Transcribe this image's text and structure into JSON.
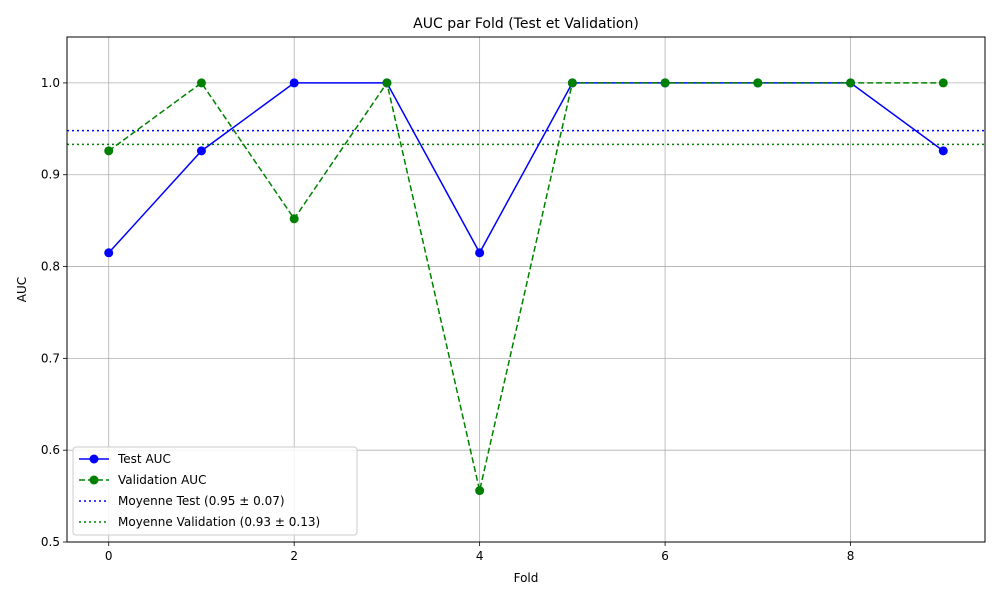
{
  "chart_data": {
    "type": "line",
    "title": "AUC par Fold (Test et Validation)",
    "xlabel": "Fold",
    "ylabel": "AUC",
    "xlim": [
      -0.45,
      9.45
    ],
    "ylim": [
      0.5,
      1.05
    ],
    "xticks": [
      0,
      2,
      4,
      6,
      8
    ],
    "yticks": [
      0.5,
      0.6,
      0.7,
      0.8,
      0.9,
      1.0
    ],
    "ytick_labels": [
      "0.5",
      "0.6",
      "0.7",
      "0.8",
      "0.9",
      "1.0"
    ],
    "grid": true,
    "legend_position": "lower-left",
    "x": [
      0,
      1,
      2,
      3,
      4,
      5,
      6,
      7,
      8,
      9
    ],
    "series": [
      {
        "name": "Test AUC",
        "color": "#0000ff",
        "style": "solid",
        "marker": "circle",
        "values": [
          0.815,
          0.926,
          1.0,
          1.0,
          0.815,
          1.0,
          1.0,
          1.0,
          1.0,
          0.926
        ]
      },
      {
        "name": "Validation AUC",
        "color": "#008000",
        "style": "dashed",
        "marker": "circle",
        "values": [
          0.926,
          1.0,
          0.852,
          1.0,
          0.556,
          1.0,
          1.0,
          1.0,
          1.0,
          1.0
        ]
      }
    ],
    "reference_lines": [
      {
        "name": "Moyenne Test (0.95 ± 0.07)",
        "color": "#0000ff",
        "style": "dotted",
        "value": 0.948
      },
      {
        "name": "Moyenne Validation (0.93 ± 0.13)",
        "color": "#008000",
        "style": "dotted",
        "value": 0.933
      }
    ]
  }
}
